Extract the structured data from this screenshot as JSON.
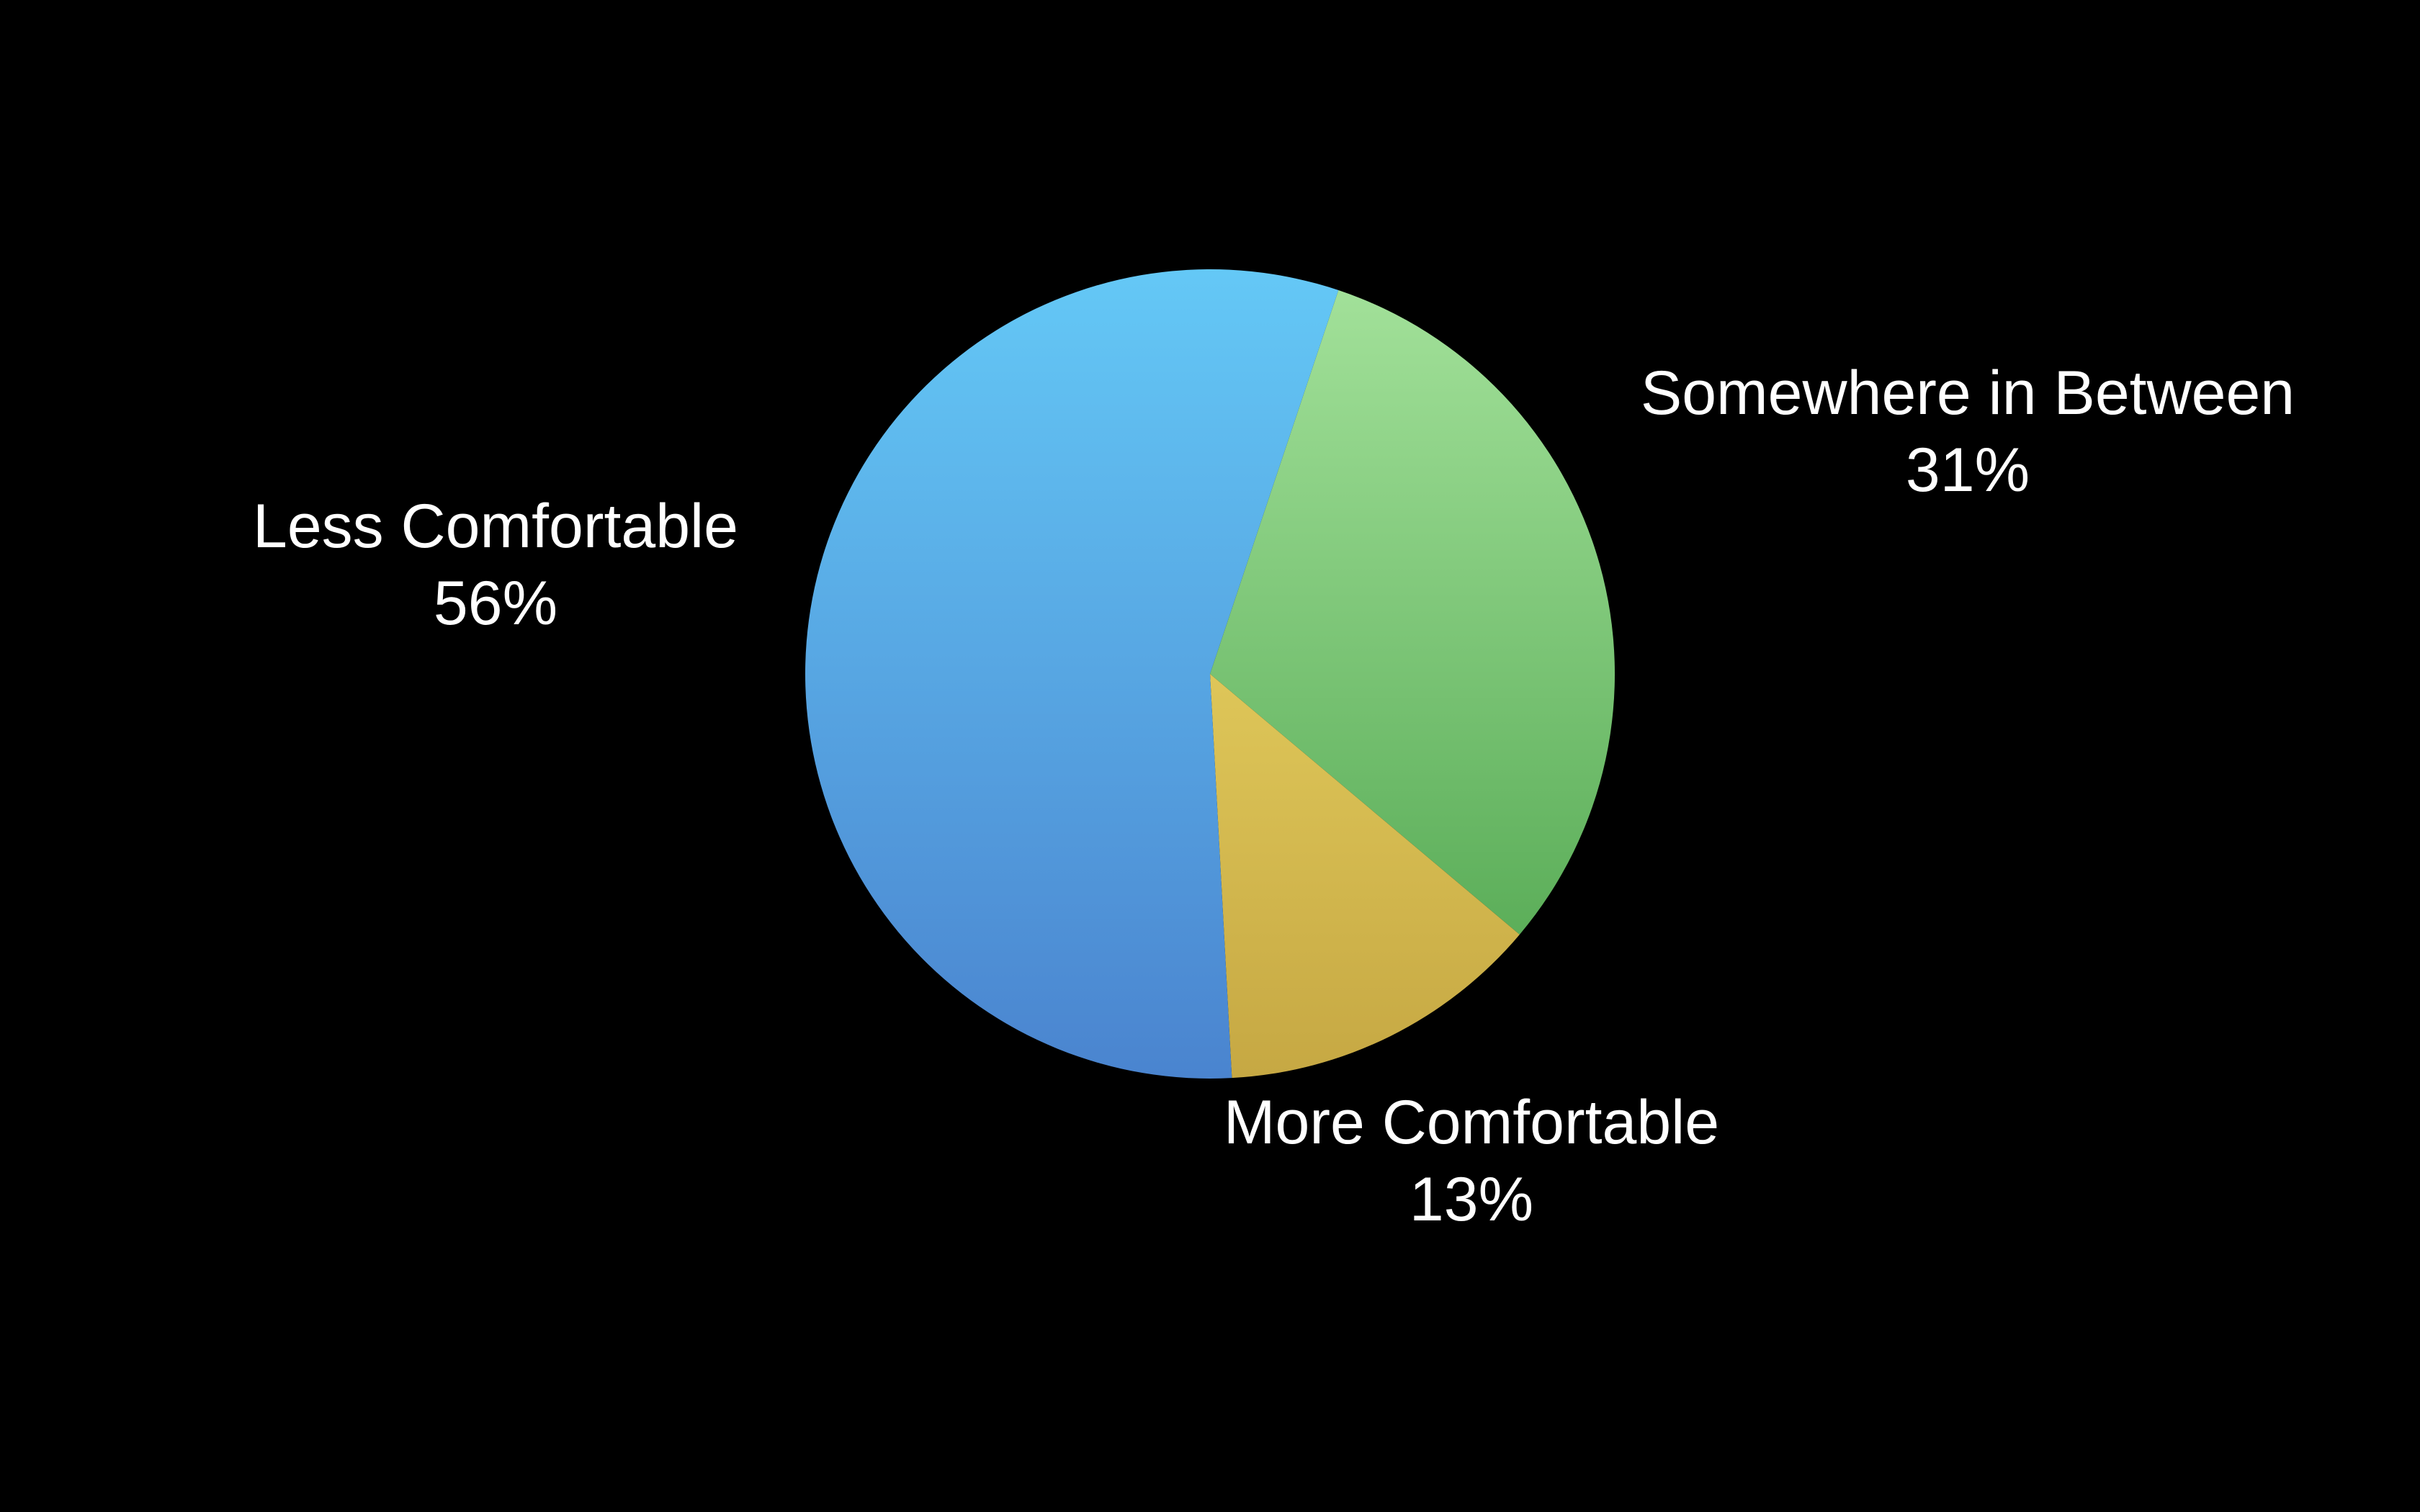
{
  "chart_data": {
    "type": "pie",
    "title": "",
    "start": "top, clockwise",
    "slices": [
      {
        "name": "Somewhere in Between",
        "value": 31,
        "display": "31%",
        "color_top": "#a4e29b",
        "color_bottom": "#4ca34b"
      },
      {
        "name": "More Comfortable",
        "value": 13,
        "display": "13%",
        "color_top": "#f6e46e",
        "color_bottom": "#c6a843"
      },
      {
        "name": "Less Comfortable",
        "value": 56,
        "display": "56%",
        "color_top": "#64c8f6",
        "color_bottom": "#4a84cf"
      }
    ],
    "background": "#000000",
    "label_color": "#ffffff"
  }
}
